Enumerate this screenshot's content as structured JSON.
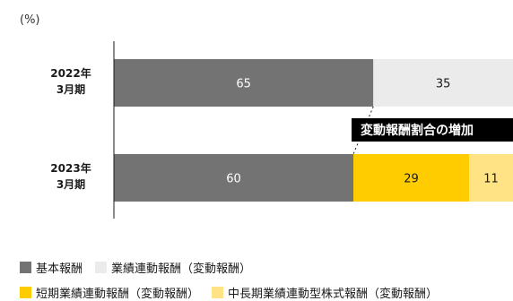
{
  "chart_data": {
    "type": "bar",
    "orientation": "horizontal",
    "stacked": true,
    "unit_label": "(%)",
    "categories": [
      {
        "line1": "2022年",
        "line2": "3月期"
      },
      {
        "line1": "2023年",
        "line2": "3月期"
      }
    ],
    "series": [
      {
        "name": "基本報酬",
        "color": "#737373",
        "label_color": "#ffffff",
        "values": [
          65,
          60
        ]
      },
      {
        "name": "業績連動報酬（変動報酬）",
        "color": "#ebebeb",
        "label_color": "#1a1a1a",
        "values": [
          35,
          null
        ]
      },
      {
        "name": "短期業績連動報酬（変動報酬）",
        "color": "#ffcc00",
        "label_color": "#1a1a1a",
        "values": [
          null,
          29
        ]
      },
      {
        "name": "中長期業績連動型株式報酬（変動報酬）",
        "color": "#ffe385",
        "label_color": "#1a1a1a",
        "values": [
          null,
          11
        ]
      }
    ],
    "xlim": [
      0,
      100
    ],
    "grid": false,
    "annotation": {
      "text": "変動報酬割合の増加"
    }
  }
}
